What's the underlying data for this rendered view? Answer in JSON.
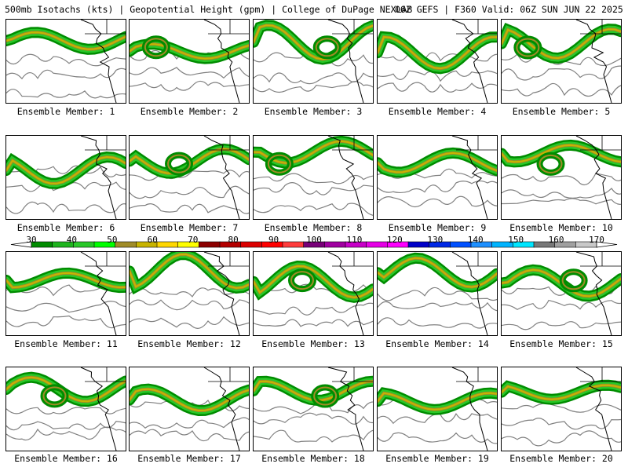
{
  "header": {
    "title": "500mb Isotachs (kts) | Geopotential Height (gpm) | College of DuPage NEXLAB",
    "run_info": "06Z GEFS | F360 Valid: 06Z SUN JUN 22 2025"
  },
  "panels": [
    {
      "label": "Ensemble Member: 1"
    },
    {
      "label": "Ensemble Member: 2"
    },
    {
      "label": "Ensemble Member: 3"
    },
    {
      "label": "Ensemble Member: 4"
    },
    {
      "label": "Ensemble Member: 5"
    },
    {
      "label": "Ensemble Member: 6"
    },
    {
      "label": "Ensemble Member: 7"
    },
    {
      "label": "Ensemble Member: 8"
    },
    {
      "label": "Ensemble Member: 9"
    },
    {
      "label": "Ensemble Member: 10"
    },
    {
      "label": "Ensemble Member: 11"
    },
    {
      "label": "Ensemble Member: 12"
    },
    {
      "label": "Ensemble Member: 13"
    },
    {
      "label": "Ensemble Member: 14"
    },
    {
      "label": "Ensemble Member: 15"
    },
    {
      "label": "Ensemble Member: 16"
    },
    {
      "label": "Ensemble Member: 17"
    },
    {
      "label": "Ensemble Member: 18"
    },
    {
      "label": "Ensemble Member: 19"
    },
    {
      "label": "Ensemble Member: 20"
    }
  ],
  "colorbar": {
    "ticks": [
      "30",
      "40",
      "50",
      "60",
      "70",
      "80",
      "90",
      "100",
      "110",
      "120",
      "130",
      "140",
      "150",
      "160",
      "170"
    ],
    "colors": [
      "#008c00",
      "#1eb41e",
      "#28c828",
      "#00ff00",
      "#a08c28",
      "#c8b400",
      "#ffd700",
      "#ffff00",
      "#8c0000",
      "#b40000",
      "#dc0000",
      "#ff0000",
      "#ff3c3c",
      "#780078",
      "#a000a0",
      "#c800c8",
      "#e600e6",
      "#ff00ff",
      "#0000c8",
      "#0028e6",
      "#0050ff",
      "#1e90ff",
      "#00b4ff",
      "#00e6ff",
      "#787878",
      "#a0a0a0",
      "#c8c8c8"
    ]
  }
}
